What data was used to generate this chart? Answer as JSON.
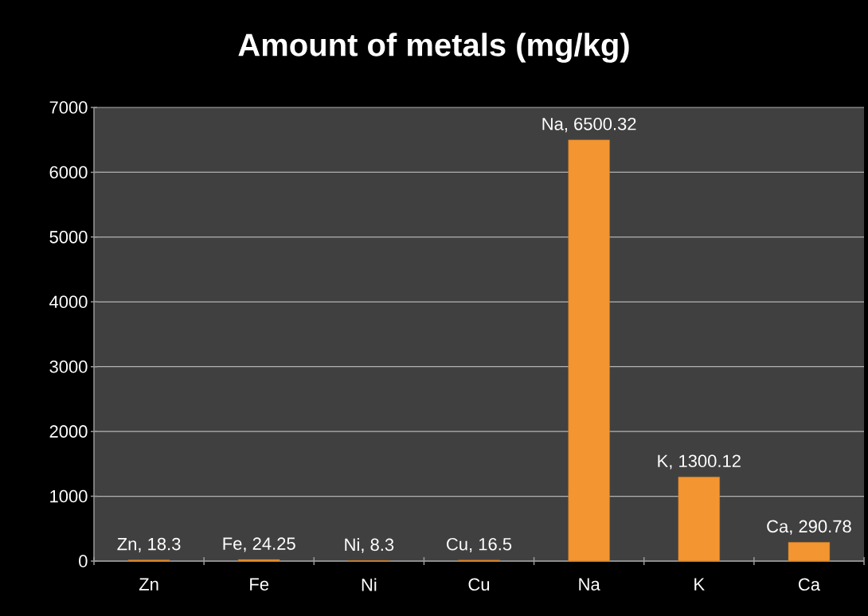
{
  "chart_data": {
    "type": "bar",
    "title": "Amount of metals (mg/kg)",
    "categories": [
      "Zn",
      "Fe",
      "Ni",
      "Cu",
      "Na",
      "K",
      "Ca"
    ],
    "values": [
      18.3,
      24.25,
      8.3,
      16.5,
      6500.32,
      1300.12,
      290.78
    ],
    "value_labels": [
      "Zn, 18.3",
      "Fe, 24.25",
      "Ni, 8.3",
      "Cu, 16.5",
      "Na, 6500.32",
      "K, 1300.12",
      "Ca, 290.78"
    ],
    "color": "#f39530",
    "ylim": [
      0,
      7000
    ],
    "yticks": [
      0,
      1000,
      2000,
      3000,
      4000,
      5000,
      6000,
      7000
    ],
    "grid": "y"
  }
}
